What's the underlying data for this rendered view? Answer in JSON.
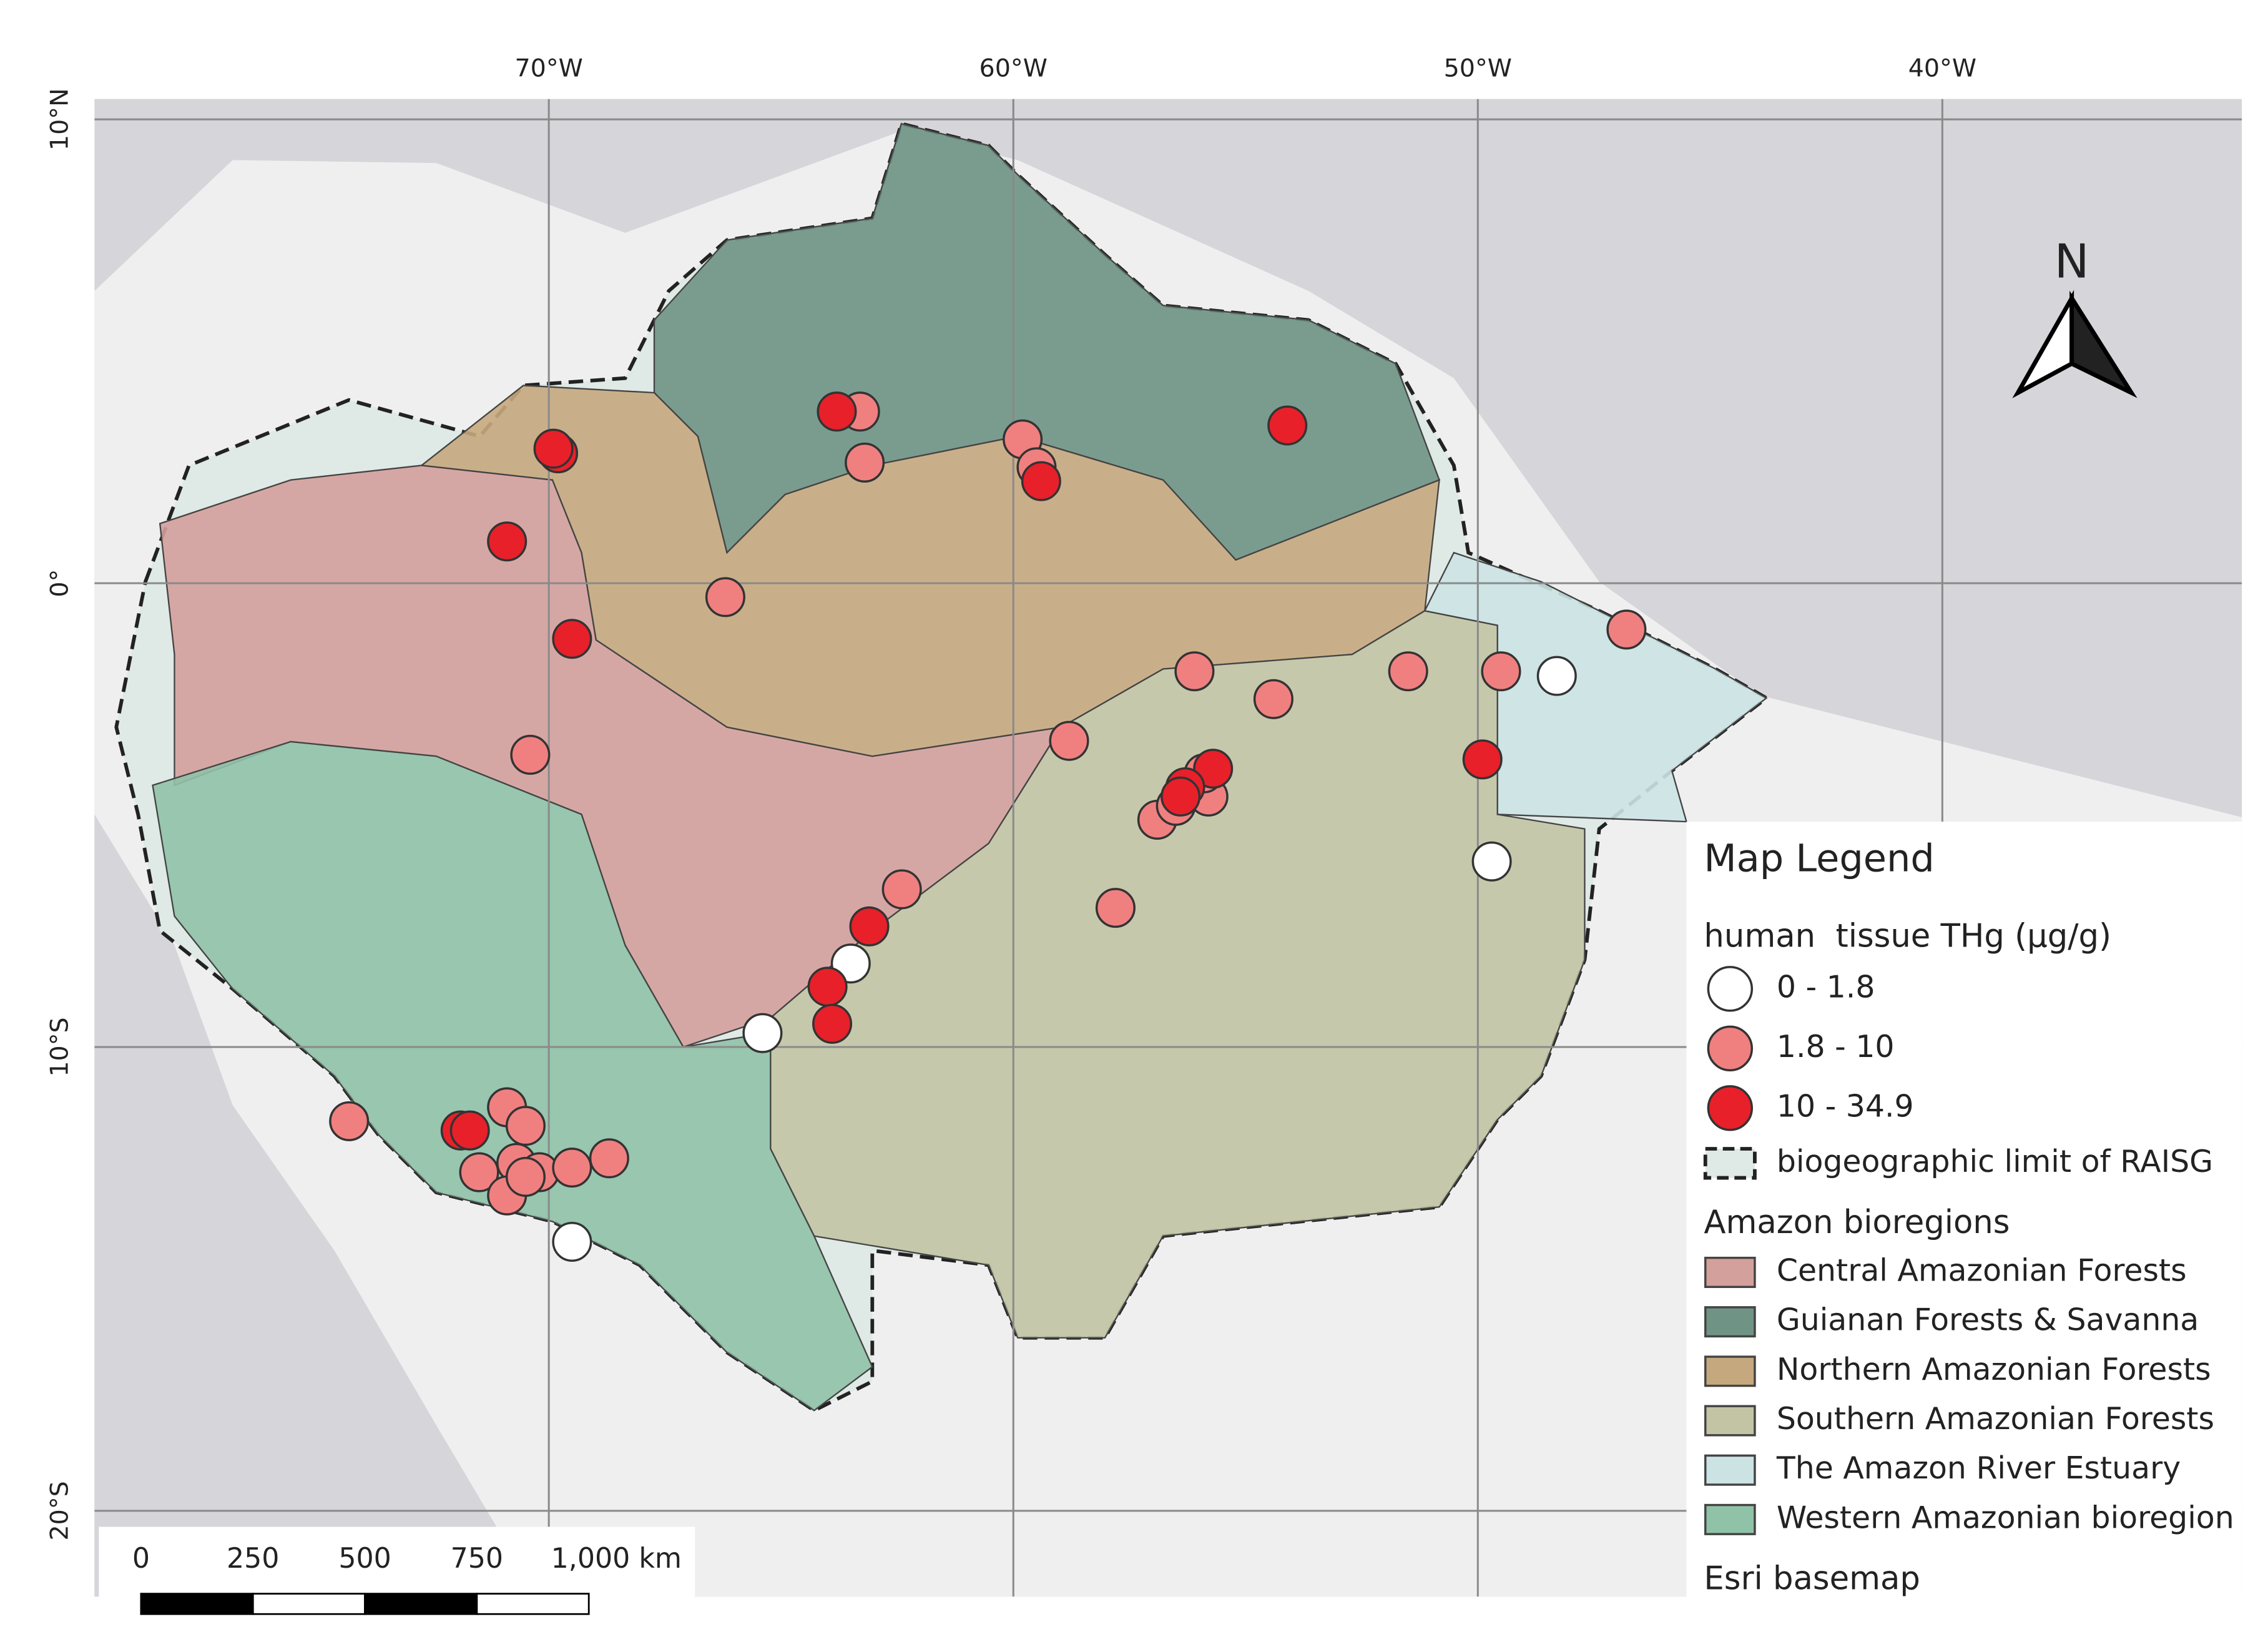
{
  "map": {
    "graticule": {
      "lon_ticks": [
        {
          "value": -70,
          "label": "70°W"
        },
        {
          "value": -60,
          "label": "60°W"
        },
        {
          "value": -50,
          "label": "50°W"
        },
        {
          "value": -40,
          "label": "40°W"
        }
      ],
      "lat_ticks": [
        {
          "value": 10,
          "label": "10°N"
        },
        {
          "value": 0,
          "label": "0°"
        },
        {
          "value": -10,
          "label": "10°S"
        },
        {
          "value": -20,
          "label": "20°S"
        }
      ]
    },
    "north_label": "N",
    "scale_bar": {
      "ticks": [
        0,
        250,
        500,
        750,
        {
          "value": 1000,
          "label": "1,000 km"
        }
      ]
    },
    "legend": {
      "title": "Map Legend",
      "thg_title": "human  tissue THg (µg/g)",
      "thg_classes": [
        {
          "label": "0 - 1.8",
          "color": "#ffffff",
          "sites": [
            [
              -48.3,
              -2.0
            ],
            [
              -49.7,
              -6.0
            ],
            [
              -63.5,
              -8.2
            ],
            [
              -65.4,
              -9.7
            ],
            [
              -69.5,
              -14.2
            ]
          ]
        },
        {
          "label": "1.8 - 10",
          "color": "#f08080",
          "sites": [
            [
              -63.3,
              3.7
            ],
            [
              -63.2,
              2.6
            ],
            [
              -59.8,
              3.1
            ],
            [
              -59.5,
              2.5
            ],
            [
              -66.2,
              -0.3
            ],
            [
              -70.4,
              -3.7
            ],
            [
              -58.8,
              -3.4
            ],
            [
              -56.1,
              -1.9
            ],
            [
              -54.4,
              -2.5
            ],
            [
              -51.5,
              -1.9
            ],
            [
              -49.5,
              -1.9
            ],
            [
              -46.8,
              -1.0
            ],
            [
              -62.4,
              -6.6
            ],
            [
              -57.8,
              -7.0
            ],
            [
              -56.9,
              -5.1
            ],
            [
              -56.5,
              -4.8
            ],
            [
              -55.8,
              -4.6
            ],
            [
              -55.9,
              -4.1
            ],
            [
              -74.3,
              -11.6
            ],
            [
              -70.9,
              -11.3
            ],
            [
              -70.5,
              -11.7
            ],
            [
              -71.5,
              -12.7
            ],
            [
              -70.7,
              -12.5
            ],
            [
              -70.2,
              -12.7
            ],
            [
              -69.5,
              -12.6
            ],
            [
              -68.7,
              -12.4
            ],
            [
              -70.9,
              -13.2
            ],
            [
              -70.5,
              -12.8
            ]
          ]
        },
        {
          "label": "10 - 34.9",
          "color": "#e8202a",
          "sites": [
            [
              -63.8,
              3.7
            ],
            [
              -69.8,
              2.8
            ],
            [
              -69.9,
              2.9
            ],
            [
              -70.9,
              0.9
            ],
            [
              -69.5,
              -1.2
            ],
            [
              -59.4,
              2.2
            ],
            [
              -54.1,
              3.4
            ],
            [
              -49.9,
              -3.8
            ],
            [
              -63.1,
              -7.4
            ],
            [
              -64.0,
              -8.7
            ],
            [
              -63.9,
              -9.5
            ],
            [
              -55.7,
              -4.0
            ],
            [
              -56.3,
              -4.4
            ],
            [
              -56.4,
              -4.6
            ],
            [
              -71.9,
              -11.8
            ],
            [
              -71.7,
              -11.8
            ]
          ]
        }
      ],
      "raisg": "biogeographic limit of RAISG",
      "bioregions_title": "Amazon bioregions",
      "bioregions": [
        {
          "name": "Central Amazonian Forests",
          "color": "#d4a09c"
        },
        {
          "name": "Guianan Forests & Savanna",
          "color": "#6f9485"
        },
        {
          "name": "Northern Amazonian Forests",
          "color": "#c6a87e"
        },
        {
          "name": "Southern Amazonian Forests",
          "color": "#c3c4a4"
        },
        {
          "name": "The Amazon River Estuary",
          "color": "#cce3e4"
        },
        {
          "name": "Western Amazonian bioregion",
          "color": "#90c2a8"
        }
      ],
      "basemap": "Esri basemap"
    }
  }
}
